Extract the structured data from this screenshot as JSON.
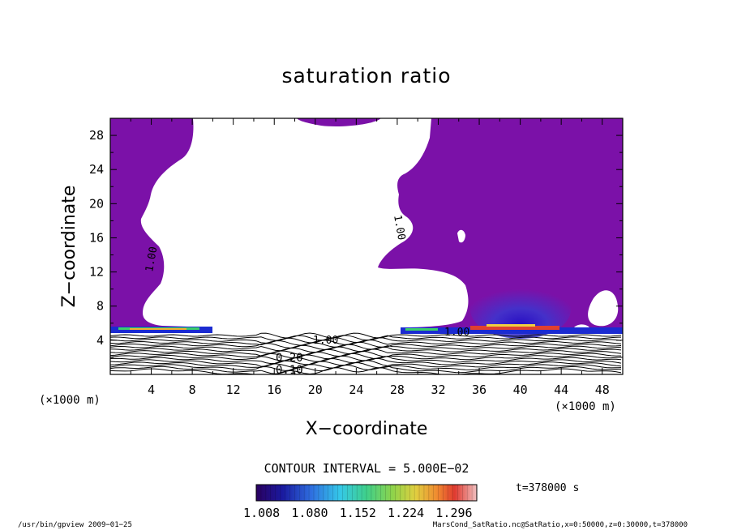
{
  "chart_data": {
    "type": "heatmap",
    "title": "saturation ratio",
    "xlabel": "X−coordinate",
    "ylabel": "Z−coordinate",
    "x_unit_label": "(×1000 m)",
    "y_unit_label": "(×1000 m)",
    "xlim": [
      0,
      50
    ],
    "ylim": [
      0,
      30
    ],
    "x_ticks": [
      "4",
      "8",
      "12",
      "16",
      "20",
      "24",
      "28",
      "32",
      "36",
      "40",
      "44",
      "48"
    ],
    "y_ticks": [
      "4",
      "8",
      "12",
      "16",
      "20",
      "24",
      "28"
    ],
    "contour_interval_label": "CONTOUR INTERVAL = 5.000E−02",
    "contour_labels": [
      "1.00",
      "0.10",
      "0.20",
      "1.00",
      "1.00",
      "1.00"
    ],
    "colorbar": {
      "min": 1.0,
      "max": 1.33,
      "tick_labels": [
        "1.008",
        "1.080",
        "1.152",
        "1.224",
        "1.296"
      ]
    },
    "time_label": "t=378000  s",
    "colors": {
      "saturated_fill": "#7b11a8",
      "cloud_base": "#1b2bd1"
    }
  },
  "footer": {
    "left": "/usr/bin/gpview   2009−01−25",
    "right": "MarsCond_SatRatio.nc@SatRatio,x=0:50000,z=0:30000,t=378000"
  }
}
